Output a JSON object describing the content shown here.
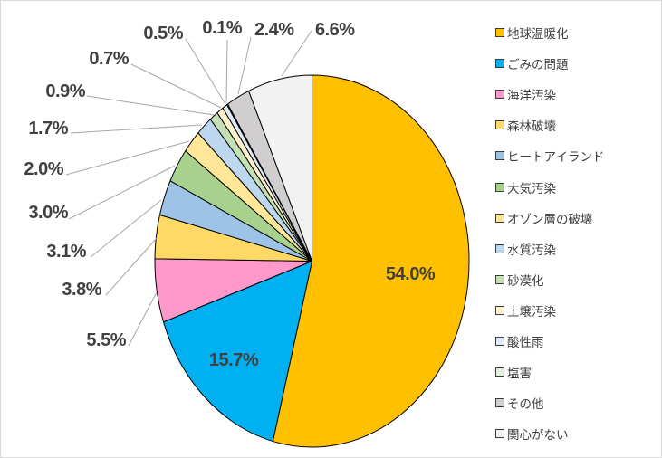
{
  "chart_data": {
    "type": "pie",
    "title": "",
    "categories": [
      "地球温暖化",
      "ごみの問題",
      "海洋汚染",
      "森林破壊",
      "ヒートアイランド",
      "大気汚染",
      "オゾン層の破壊",
      "水質汚染",
      "砂漠化",
      "土壌汚染",
      "酸性雨",
      "塩害",
      "その他",
      "関心がない"
    ],
    "values": [
      54.0,
      15.7,
      5.5,
      3.8,
      3.1,
      3.0,
      2.0,
      1.7,
      0.9,
      0.7,
      0.5,
      0.1,
      2.4,
      6.6
    ],
    "data_labels": [
      "54.0%",
      "15.7%",
      "5.5%",
      "3.8%",
      "3.1%",
      "3.0%",
      "2.0%",
      "1.7%",
      "0.9%",
      "0.7%",
      "0.5%",
      "0.1%",
      "2.4%",
      "6.6%"
    ],
    "colors": [
      "#FFC000",
      "#00B0F0",
      "#FF99CC",
      "#FFD966",
      "#9DC3E6",
      "#A9D18E",
      "#FFE699",
      "#BDD7EE",
      "#C5E0B4",
      "#FFF2CC",
      "#DEEBF7",
      "#E2F0D9",
      "#D0CECE",
      "#F2F2F2"
    ],
    "unit": "%",
    "start_angle": "12 o'clock, clockwise",
    "legend_position": "right"
  },
  "legend": {
    "items": [
      {
        "label": "地球温暖化"
      },
      {
        "label": "ごみの問題"
      },
      {
        "label": "海洋汚染"
      },
      {
        "label": "森林破壊"
      },
      {
        "label": "ヒートアイランド"
      },
      {
        "label": "大気汚染"
      },
      {
        "label": "オゾン層の破壊"
      },
      {
        "label": "水質汚染"
      },
      {
        "label": "砂漠化"
      },
      {
        "label": "土壌汚染"
      },
      {
        "label": "酸性雨"
      },
      {
        "label": "塩害"
      },
      {
        "label": "その他"
      },
      {
        "label": "関心がない"
      }
    ]
  }
}
